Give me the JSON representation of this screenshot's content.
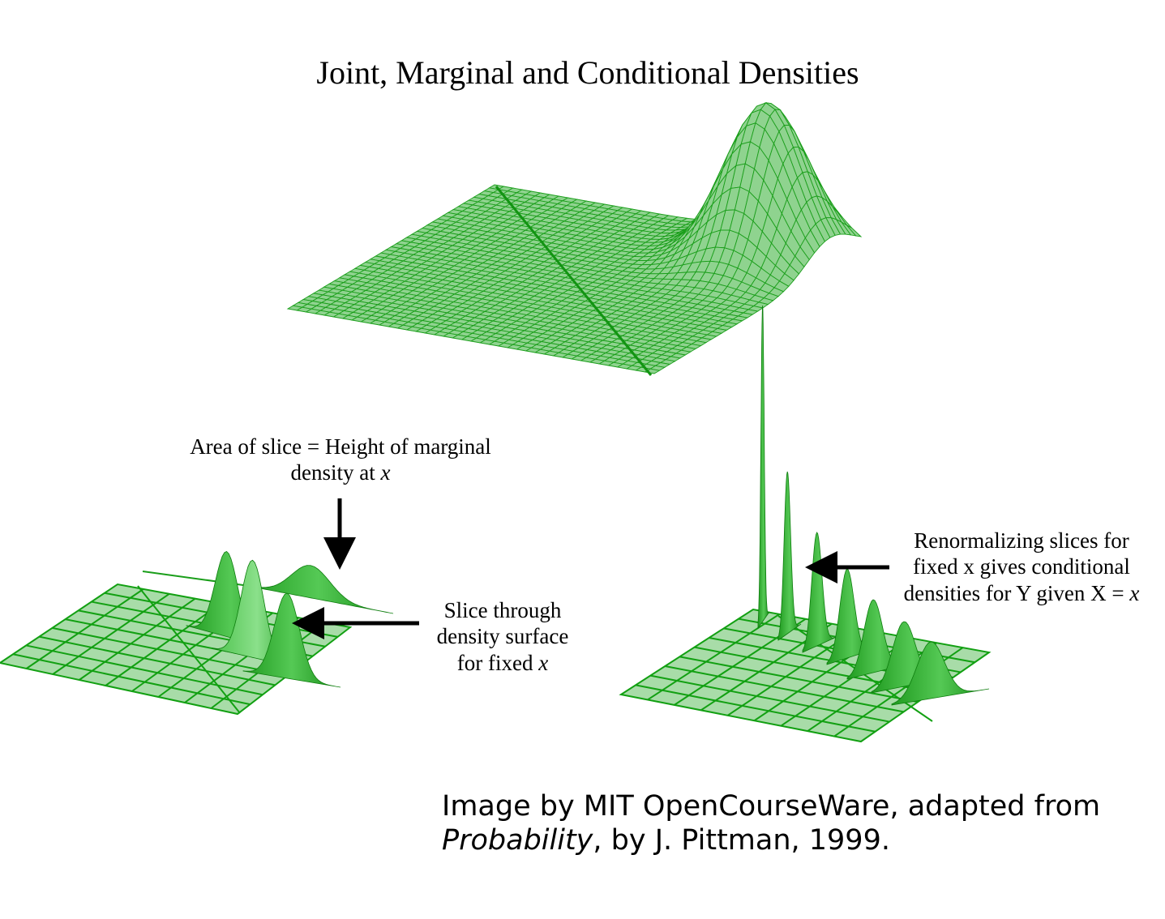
{
  "title": "Joint, Marginal and Conditional Densities",
  "labels": {
    "area_line1": "Area of slice = Height of marginal",
    "area_line2_prefix": "density at ",
    "area_line2_var": "x",
    "slice_line1": "Slice through",
    "slice_line2": "density surface",
    "slice_line3_prefix": "for fixed ",
    "slice_line3_var": "x",
    "renorm_line1": "Renormalizing slices for",
    "renorm_line2": "fixed x gives conditional",
    "renorm_line3_prefix": "densities for Y given X = ",
    "renorm_line3_var": "x"
  },
  "credit": {
    "line1": "Image by MIT OpenCourseWare, adapted from",
    "book": "Probability",
    "line2_rest": ", by J. Pittman, 1999."
  },
  "colors": {
    "surface_fill": "#8fd38f",
    "surface_line": "#1a9e1a",
    "plane_fill": "#a8dca8",
    "slice_fill": "#2db52d",
    "arrow": "#000000"
  }
}
